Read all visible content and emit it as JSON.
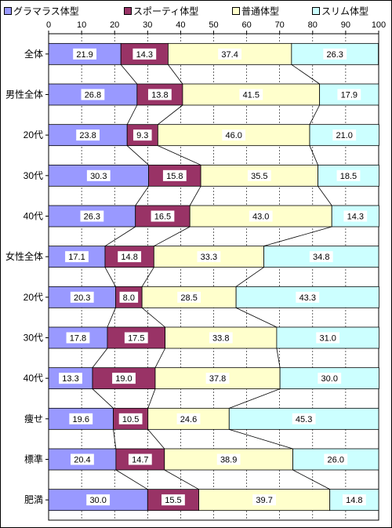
{
  "chart_data": {
    "type": "bar",
    "orientation": "horizontal",
    "stacked": true,
    "percent": true,
    "title": "",
    "xlabel": "",
    "ylabel": "",
    "xlim": [
      0,
      100
    ],
    "x_ticks": [
      0,
      10,
      20,
      30,
      40,
      50,
      60,
      70,
      80,
      90,
      100
    ],
    "grid": "vertical dotted",
    "legend_position": "top",
    "series_lines": true,
    "categories": [
      "全体",
      "男性全体",
      "20代",
      "30代",
      "40代",
      "女性全体",
      "20代",
      "30代",
      "40代",
      "痩せ",
      "標準",
      "肥満"
    ],
    "series": [
      {
        "name": "グラマラス体型",
        "color": "#9999ff",
        "values": [
          21.9,
          26.8,
          23.8,
          30.3,
          26.3,
          17.1,
          20.3,
          17.8,
          13.3,
          19.6,
          20.4,
          30.0
        ]
      },
      {
        "name": "スポーティ体型",
        "color": "#993366",
        "values": [
          14.3,
          13.8,
          9.3,
          15.8,
          16.5,
          14.8,
          8.0,
          17.5,
          19.0,
          10.5,
          14.7,
          15.5
        ]
      },
      {
        "name": "普通体型",
        "color": "#ffffcc",
        "values": [
          37.4,
          41.5,
          46.0,
          35.5,
          43.0,
          33.3,
          28.5,
          33.8,
          37.8,
          24.6,
          38.9,
          39.7
        ]
      },
      {
        "name": "スリム体型",
        "color": "#ccffff",
        "values": [
          26.3,
          17.9,
          21.0,
          18.5,
          14.3,
          34.8,
          43.3,
          31.0,
          30.0,
          45.3,
          26.0,
          14.8
        ]
      }
    ],
    "value_labels": [
      [
        "21.9",
        "26.8",
        "23.8",
        "30.3",
        "26.3",
        "17.1",
        "20.3",
        "17.8",
        "13.3",
        "19.6",
        "20.4",
        "30.0"
      ],
      [
        "14.3",
        "13.8",
        "9.3",
        "15.8",
        "16.5",
        "14.8",
        "8.0",
        "17.5",
        "19.0",
        "10.5",
        "14.7",
        "15.5"
      ],
      [
        "37.4",
        "41.5",
        "46.0",
        "35.5",
        "43.0",
        "33.3",
        "28.5",
        "33.8",
        "37.8",
        "24.6",
        "38.9",
        "39.7"
      ],
      [
        "26.3",
        "17.9",
        "21.0",
        "18.5",
        "14.3",
        "34.8",
        "43.3",
        "31.0",
        "30.0",
        "45.3",
        "26.0",
        "14.8"
      ]
    ]
  }
}
